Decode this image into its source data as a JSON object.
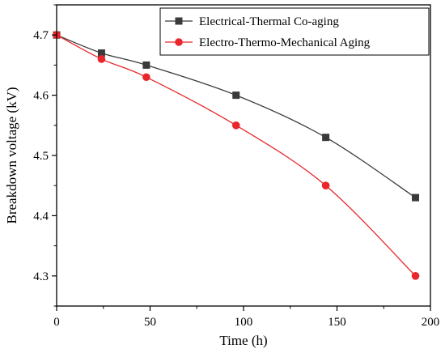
{
  "chart_data": {
    "type": "line",
    "title": "",
    "xlabel": "Time (h)",
    "ylabel": "Breakdown voltage (kV)",
    "xlim": [
      0,
      200
    ],
    "ylim": [
      4.25,
      4.75
    ],
    "x_ticks": [
      0,
      50,
      100,
      150,
      200
    ],
    "y_ticks": [
      4.3,
      4.4,
      4.5,
      4.6,
      4.7
    ],
    "x_tick_labels": [
      "0",
      "50",
      "100",
      "150",
      "200"
    ],
    "y_tick_labels": [
      "4.3",
      "4.4",
      "4.5",
      "4.6",
      "4.7"
    ],
    "grid": false,
    "legend_position": "top-right",
    "series": [
      {
        "name": "Electrical-Thermal Co-aging",
        "color": "#3a3a3a",
        "marker": "square",
        "x": [
          0,
          24,
          48,
          96,
          144,
          192
        ],
        "y": [
          4.7,
          4.67,
          4.65,
          4.6,
          4.53,
          4.43
        ]
      },
      {
        "name": "Electro-Thermo-Mechanical Aging",
        "color": "#e8262b",
        "marker": "circle",
        "x": [
          0,
          24,
          48,
          96,
          144,
          192
        ],
        "y": [
          4.7,
          4.66,
          4.63,
          4.55,
          4.45,
          4.3
        ]
      }
    ]
  }
}
